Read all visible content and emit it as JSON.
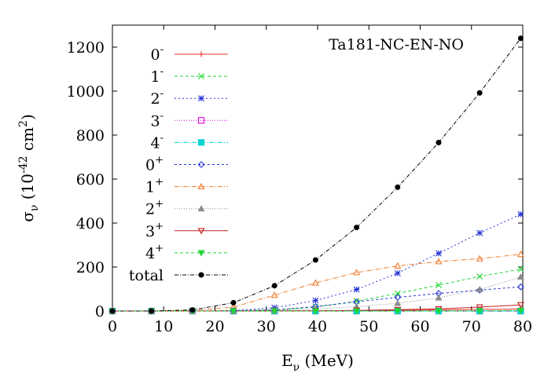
{
  "chart_data": {
    "type": "line",
    "annotation": "Ta181-NC-EN-NO",
    "xlabel": {
      "base": "E",
      "sub": "ν",
      "rest": " (MeV)"
    },
    "ylabel": {
      "base": "σ",
      "sub": "ν",
      "open": " (10",
      "exp1": "-42",
      "mid": " cm",
      "exp2": "2",
      "close": ")"
    },
    "xlim": [
      0,
      80
    ],
    "ylim": [
      0,
      1300
    ],
    "xticks": [
      0,
      10,
      20,
      30,
      40,
      50,
      60,
      70,
      80
    ],
    "yticks": [
      0,
      200,
      400,
      600,
      800,
      1000,
      1200
    ],
    "grid": false,
    "legend_position": "top-left",
    "x": [
      0,
      7.6,
      15.6,
      23.6,
      31.6,
      39.6,
      47.6,
      55.6,
      63.6,
      71.6,
      79.6
    ],
    "series": [
      {
        "name": "0",
        "sup": "-",
        "color": "#e8302a",
        "marker": "plus",
        "dash": "",
        "values": [
          0,
          0,
          0,
          0.2,
          0.5,
          1,
          2,
          3.5,
          5,
          7,
          9
        ]
      },
      {
        "name": "1",
        "sup": "-",
        "color": "#22d633",
        "marker": "x",
        "dash": "4,3",
        "values": [
          0,
          0,
          0,
          1,
          5,
          18,
          45,
          80,
          118,
          157,
          190
        ]
      },
      {
        "name": "2",
        "sup": "-",
        "color": "#2633d4",
        "marker": "asterisk",
        "dash": "2,3",
        "values": [
          0,
          0,
          0,
          2,
          15,
          48,
          98,
          172,
          262,
          355,
          440
        ]
      },
      {
        "name": "3",
        "sup": "-",
        "color": "#dd00dd",
        "marker": "square-open",
        "dash": "1,2",
        "values": [
          0,
          0,
          0,
          0,
          0,
          0,
          0,
          0,
          0,
          0,
          0
        ]
      },
      {
        "name": "4",
        "sup": "-",
        "color": "#00d4d4",
        "marker": "square-filled",
        "dash": "6,2,1,2",
        "values": [
          0,
          0,
          0,
          0,
          0,
          0,
          0,
          0,
          0,
          0,
          0
        ]
      },
      {
        "name": "0",
        "sup": "+",
        "color": "#2633d4",
        "marker": "diamond-open",
        "dash": "3,3",
        "values": [
          0,
          0,
          0,
          1,
          5,
          20,
          42,
          62,
          80,
          95,
          110
        ]
      },
      {
        "name": "1",
        "sup": "+",
        "color": "#f07c2c",
        "marker": "triangle-open",
        "dash": "6,2,1,2",
        "values": [
          0,
          0,
          2,
          18,
          72,
          128,
          175,
          205,
          225,
          238,
          258
        ]
      },
      {
        "name": "2",
        "sup": "+",
        "color": "#8c8c8c",
        "marker": "triangle-filled",
        "dash": "1,2",
        "values": [
          0,
          0,
          0,
          0,
          3,
          10,
          20,
          35,
          60,
          98,
          155
        ]
      },
      {
        "name": "3",
        "sup": "+",
        "color": "#c42020",
        "marker": "triangle-down-open",
        "dash": "",
        "values": [
          0,
          0,
          0,
          0,
          0.5,
          1,
          3,
          6,
          10,
          18,
          28
        ]
      },
      {
        "name": "4",
        "sup": "+",
        "color": "#22d633",
        "marker": "triangle-down-filled",
        "dash": "4,3",
        "values": [
          0,
          0,
          0,
          0,
          0,
          0,
          0,
          0,
          0,
          1,
          2
        ]
      },
      {
        "name": "total",
        "sup": "",
        "color": "#000000",
        "marker": "circle-filled",
        "dash": "5,2,1,2",
        "values": [
          0,
          0,
          5,
          38,
          115,
          232,
          380,
          563,
          766,
          992,
          1240
        ]
      }
    ]
  }
}
